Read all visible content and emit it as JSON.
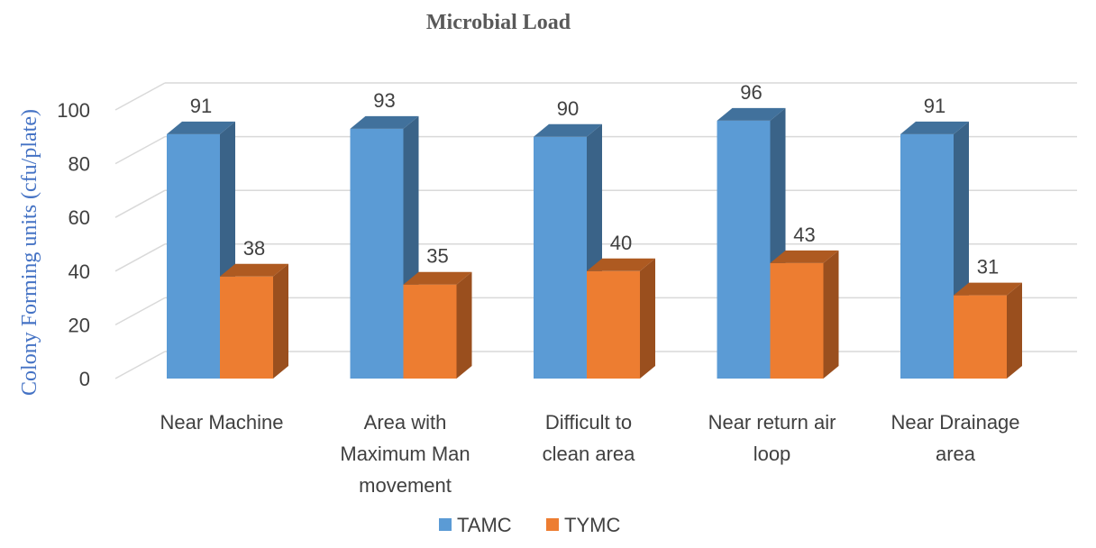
{
  "chart_data": {
    "type": "bar",
    "title": "Microbial Load",
    "ylabel": "Colony Forming units (cfu/plate)",
    "xlabel": "",
    "ylim": [
      0,
      100
    ],
    "yticks": [
      0,
      20,
      40,
      60,
      80,
      100
    ],
    "categories": [
      [
        "Near Machine"
      ],
      [
        "Area with",
        "Maximum Man",
        "movement"
      ],
      [
        "Difficult to",
        "clean area"
      ],
      [
        "Near return air",
        "loop"
      ],
      [
        "Near Drainage",
        "area"
      ]
    ],
    "series": [
      {
        "name": "TAMC",
        "values": [
          91,
          93,
          90,
          96,
          91
        ],
        "color": "#5b9bd5",
        "side_color": "#3a6388",
        "top_color": "#41719c"
      },
      {
        "name": "TYMC",
        "values": [
          38,
          35,
          40,
          43,
          31
        ],
        "color": "#ed7d31",
        "side_color": "#9a4f1e",
        "top_color": "#ae5a21"
      }
    ],
    "grid": true,
    "legend": "bottom",
    "data_labels": true,
    "projection": "3d-bar"
  }
}
